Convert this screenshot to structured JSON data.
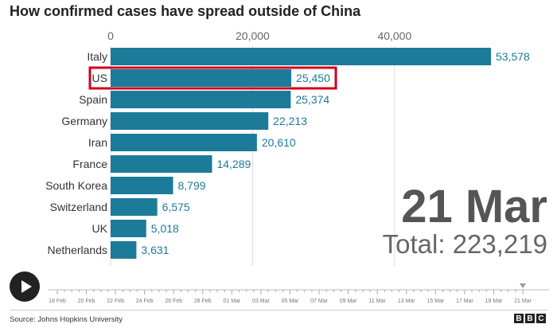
{
  "title": "How confirmed cases have spread outside of China",
  "chart_data": {
    "type": "bar",
    "orientation": "horizontal",
    "categories": [
      "Italy",
      "US",
      "Spain",
      "Germany",
      "Iran",
      "France",
      "South Korea",
      "Switzerland",
      "UK",
      "Netherlands"
    ],
    "values": [
      53578,
      25450,
      25374,
      22213,
      20610,
      14289,
      8799,
      6575,
      5018,
      3631
    ],
    "value_labels": [
      "53,578",
      "25,450",
      "25,374",
      "22,213",
      "20,610",
      "14,289",
      "8,799",
      "6,575",
      "5,018",
      "3,631"
    ],
    "x_ticks": [
      0,
      20000,
      40000
    ],
    "x_tick_labels": [
      "0",
      "20,000",
      "40,000"
    ],
    "xlim": [
      0,
      54000
    ],
    "grid": true,
    "bar_color": "#1b7b98",
    "highlight": {
      "category": "US",
      "color": "#d0021b"
    }
  },
  "overlay": {
    "date": "21 Mar",
    "total_label": "Total:",
    "total_value": "223,219"
  },
  "timeline": {
    "labels": [
      "18 Feb",
      "20 Feb",
      "22 Feb",
      "24 Feb",
      "26 Feb",
      "28 Feb",
      "01 Mar",
      "03 Mar",
      "05 Mar",
      "07 Mar",
      "09 Mar",
      "11 Mar",
      "13 Mar",
      "15 Mar",
      "17 Mar",
      "19 Mar",
      "21 Mar"
    ],
    "current": "21 Mar",
    "play_icon": "play-icon"
  },
  "source": "Source: Johns Hopkins University",
  "logo": {
    "letters": [
      "B",
      "B",
      "C"
    ]
  }
}
